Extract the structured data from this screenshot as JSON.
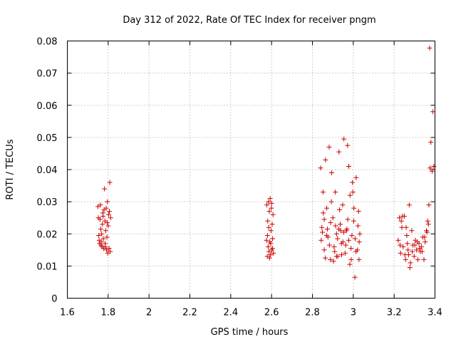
{
  "chart_data": {
    "type": "scatter",
    "title": "Day 312 of 2022, Rate Of TEC Index for receiver pngm",
    "xlabel": "GPS time / hours",
    "ylabel": "ROTI / TECUs",
    "xlim": [
      1.6,
      3.4
    ],
    "ylim": [
      0,
      0.08
    ],
    "grid": true,
    "x_ticks": [
      1.6,
      1.8,
      2.0,
      2.2,
      2.4,
      2.6,
      2.8,
      3.0,
      3.2,
      3.4
    ],
    "x_tick_labels": [
      "1.6",
      "1.8",
      "2",
      "2.2",
      "2.4",
      "2.6",
      "2.8",
      "3",
      "3.2",
      "3.4"
    ],
    "y_ticks": [
      0,
      0.01,
      0.02,
      0.03,
      0.04,
      0.05,
      0.06,
      0.07,
      0.08
    ],
    "y_tick_labels": [
      "0",
      "0.01",
      "0.02",
      "0.03",
      "0.04",
      "0.05",
      "0.06",
      "0.07",
      "0.08"
    ],
    "marker": "+",
    "color": "#cc0000",
    "series": [
      {
        "name": "ROTI",
        "points": [
          [
            1.75,
            0.0285
          ],
          [
            1.752,
            0.025
          ],
          [
            1.754,
            0.0195
          ],
          [
            1.756,
            0.018
          ],
          [
            1.758,
            0.017
          ],
          [
            1.76,
            0.0245
          ],
          [
            1.762,
            0.029
          ],
          [
            1.764,
            0.0215
          ],
          [
            1.766,
            0.0175
          ],
          [
            1.768,
            0.02
          ],
          [
            1.77,
            0.016
          ],
          [
            1.772,
            0.023
          ],
          [
            1.774,
            0.0265
          ],
          [
            1.776,
            0.0185
          ],
          [
            1.778,
            0.0155
          ],
          [
            1.78,
            0.0275
          ],
          [
            1.782,
            0.034
          ],
          [
            1.784,
            0.024
          ],
          [
            1.786,
            0.016
          ],
          [
            1.788,
            0.021
          ],
          [
            1.79,
            0.028
          ],
          [
            1.792,
            0.015
          ],
          [
            1.794,
            0.019
          ],
          [
            1.796,
            0.03
          ],
          [
            1.798,
            0.014
          ],
          [
            1.8,
            0.0225
          ],
          [
            1.802,
            0.026
          ],
          [
            1.804,
            0.0155
          ],
          [
            1.806,
            0.027
          ],
          [
            1.808,
            0.036
          ],
          [
            1.81,
            0.0145
          ],
          [
            1.812,
            0.025
          ],
          [
            1.765,
            0.0165
          ],
          [
            1.775,
            0.0255
          ],
          [
            1.785,
            0.017
          ],
          [
            1.795,
            0.0235
          ],
          [
            2.575,
            0.018
          ],
          [
            2.577,
            0.029
          ],
          [
            2.579,
            0.013
          ],
          [
            2.581,
            0.024
          ],
          [
            2.583,
            0.016
          ],
          [
            2.585,
            0.03
          ],
          [
            2.587,
            0.0145
          ],
          [
            2.589,
            0.027
          ],
          [
            2.591,
            0.0175
          ],
          [
            2.593,
            0.031
          ],
          [
            2.595,
            0.0135
          ],
          [
            2.597,
            0.021
          ],
          [
            2.599,
            0.028
          ],
          [
            2.601,
            0.015
          ],
          [
            2.603,
            0.023
          ],
          [
            2.605,
            0.0185
          ],
          [
            2.607,
            0.026
          ],
          [
            2.609,
            0.014
          ],
          [
            2.58,
            0.0195
          ],
          [
            2.59,
            0.0125
          ],
          [
            2.6,
            0.0295
          ],
          [
            2.586,
            0.022
          ],
          [
            2.596,
            0.017
          ],
          [
            2.604,
            0.0155
          ],
          [
            2.84,
            0.0405
          ],
          [
            2.846,
            0.022
          ],
          [
            2.852,
            0.033
          ],
          [
            2.858,
            0.015
          ],
          [
            2.864,
            0.043
          ],
          [
            2.87,
            0.028
          ],
          [
            2.876,
            0.019
          ],
          [
            2.882,
            0.047
          ],
          [
            2.888,
            0.012
          ],
          [
            2.894,
            0.039
          ],
          [
            2.9,
            0.025
          ],
          [
            2.906,
            0.016
          ],
          [
            2.912,
            0.033
          ],
          [
            2.918,
            0.02
          ],
          [
            2.924,
            0.013
          ],
          [
            2.93,
            0.0455
          ],
          [
            2.936,
            0.023
          ],
          [
            2.942,
            0.017
          ],
          [
            2.948,
            0.029
          ],
          [
            2.954,
            0.0495
          ],
          [
            2.96,
            0.014
          ],
          [
            2.966,
            0.021
          ],
          [
            2.972,
            0.0475
          ],
          [
            2.978,
            0.018
          ],
          [
            2.984,
            0.032
          ],
          [
            2.99,
            0.012
          ],
          [
            2.996,
            0.036
          ],
          [
            3.002,
            0.024
          ],
          [
            3.008,
            0.0065
          ],
          [
            3.014,
            0.0375
          ],
          [
            3.02,
            0.015
          ],
          [
            3.026,
            0.027
          ],
          [
            3.032,
            0.02
          ],
          [
            2.843,
            0.018
          ],
          [
            2.853,
            0.0265
          ],
          [
            2.863,
            0.0125
          ],
          [
            2.873,
            0.0215
          ],
          [
            2.883,
            0.0165
          ],
          [
            2.893,
            0.03
          ],
          [
            2.903,
            0.0115
          ],
          [
            2.913,
            0.0225
          ],
          [
            2.923,
            0.0185
          ],
          [
            2.933,
            0.0275
          ],
          [
            2.943,
            0.0135
          ],
          [
            2.953,
            0.0205
          ],
          [
            2.963,
            0.0165
          ],
          [
            2.973,
            0.0245
          ],
          [
            2.983,
            0.0105
          ],
          [
            2.993,
            0.0195
          ],
          [
            3.003,
            0.028
          ],
          [
            3.013,
            0.0145
          ],
          [
            3.023,
            0.0225
          ],
          [
            3.028,
            0.012
          ],
          [
            2.849,
            0.0205
          ],
          [
            2.869,
            0.0195
          ],
          [
            2.889,
            0.0235
          ],
          [
            2.909,
            0.0145
          ],
          [
            2.929,
            0.0215
          ],
          [
            2.949,
            0.0175
          ],
          [
            2.969,
            0.0215
          ],
          [
            2.989,
            0.0155
          ],
          [
            3.009,
            0.0185
          ],
          [
            3.029,
            0.0175
          ],
          [
            2.998,
            0.033
          ],
          [
            2.978,
            0.041
          ],
          [
            2.938,
            0.021
          ],
          [
            2.918,
            0.013
          ],
          [
            2.858,
            0.0245
          ],
          [
            3.22,
            0.018
          ],
          [
            3.226,
            0.025
          ],
          [
            3.232,
            0.014
          ],
          [
            3.238,
            0.022
          ],
          [
            3.244,
            0.016
          ],
          [
            3.25,
            0.0255
          ],
          [
            3.256,
            0.012
          ],
          [
            3.262,
            0.0195
          ],
          [
            3.268,
            0.015
          ],
          [
            3.274,
            0.029
          ],
          [
            3.28,
            0.011
          ],
          [
            3.286,
            0.021
          ],
          [
            3.292,
            0.0165
          ],
          [
            3.298,
            0.013
          ],
          [
            3.304,
            0.018
          ],
          [
            3.31,
            0.015
          ],
          [
            3.316,
            0.012
          ],
          [
            3.322,
            0.017
          ],
          [
            3.328,
            0.0145
          ],
          [
            3.334,
            0.016
          ],
          [
            3.34,
            0.019
          ],
          [
            3.346,
            0.012
          ],
          [
            3.352,
            0.0175
          ],
          [
            3.358,
            0.021
          ],
          [
            3.364,
            0.024
          ],
          [
            3.37,
            0.029
          ],
          [
            3.376,
            0.0405
          ],
          [
            3.38,
            0.0485
          ],
          [
            3.386,
            0.0395
          ],
          [
            3.39,
            0.058
          ],
          [
            3.374,
            0.0778
          ],
          [
            3.394,
            0.041
          ],
          [
            3.229,
            0.0165
          ],
          [
            3.241,
            0.0255
          ],
          [
            3.253,
            0.0135
          ],
          [
            3.265,
            0.017
          ],
          [
            3.277,
            0.0095
          ],
          [
            3.289,
            0.0145
          ],
          [
            3.301,
            0.0165
          ],
          [
            3.313,
            0.0175
          ],
          [
            3.325,
            0.0155
          ],
          [
            3.337,
            0.0145
          ],
          [
            3.349,
            0.019
          ],
          [
            3.361,
            0.0205
          ],
          [
            3.368,
            0.023
          ],
          [
            3.235,
            0.024
          ],
          [
            3.259,
            0.022
          ],
          [
            3.271,
            0.0135
          ]
        ]
      }
    ]
  }
}
